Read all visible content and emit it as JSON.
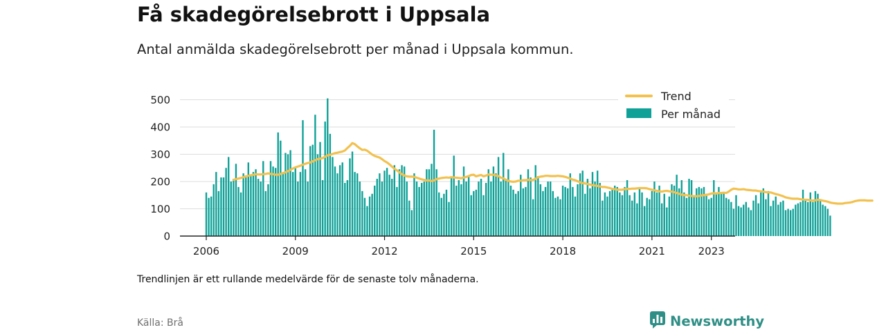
{
  "header": {
    "title": "Få skadegörelsebrott i Uppsala",
    "subtitle": "Antal anmälda skadegörelsebrott per månad i Uppsala kommun."
  },
  "footer": {
    "note": "Trendlinjen är ett rullande medelvärde för de senaste tolv månaderna.",
    "source": "Källa: Brå",
    "brand": "Newsworthy",
    "brand_icon": "chart-bubble-icon"
  },
  "colors": {
    "bars": "#0fa197",
    "trend": "#f2c14e",
    "grid": "#dddddd",
    "axis": "#222222",
    "brand": "#2f8f86"
  },
  "chart_data": {
    "type": "bar",
    "x_ticks": [
      "2006",
      "2009",
      "2012",
      "2015",
      "2018",
      "2021",
      "2023"
    ],
    "y_ticks": [
      0,
      100,
      200,
      300,
      400,
      500
    ],
    "ylim": [
      0,
      520
    ],
    "grid": true,
    "legend_position": "top-right",
    "series": [
      {
        "name": "Per månad",
        "kind": "bar",
        "start": "2006-01",
        "values": [
          160,
          140,
          145,
          190,
          235,
          165,
          215,
          215,
          250,
          290,
          200,
          210,
          265,
          180,
          160,
          230,
          215,
          270,
          220,
          235,
          245,
          210,
          200,
          275,
          165,
          190,
          275,
          255,
          250,
          380,
          350,
          230,
          305,
          300,
          315,
          235,
          250,
          200,
          235,
          425,
          245,
          200,
          330,
          335,
          445,
          300,
          345,
          205,
          420,
          505,
          375,
          290,
          255,
          230,
          260,
          270,
          195,
          205,
          285,
          310,
          235,
          230,
          200,
          165,
          140,
          110,
          145,
          155,
          185,
          210,
          230,
          200,
          240,
          250,
          225,
          210,
          260,
          180,
          245,
          260,
          255,
          200,
          130,
          95,
          230,
          200,
          180,
          195,
          200,
          245,
          245,
          265,
          390,
          245,
          160,
          140,
          155,
          170,
          125,
          215,
          295,
          185,
          205,
          190,
          255,
          200,
          220,
          150,
          165,
          170,
          200,
          210,
          150,
          195,
          245,
          200,
          255,
          230,
          290,
          200,
          305,
          210,
          245,
          185,
          170,
          155,
          165,
          225,
          175,
          180,
          245,
          215,
          135,
          260,
          220,
          190,
          165,
          180,
          200,
          200,
          165,
          140,
          145,
          135,
          185,
          180,
          175,
          230,
          180,
          145,
          190,
          230,
          240,
          155,
          210,
          175,
          235,
          200,
          240,
          195,
          130,
          160,
          145,
          165,
          170,
          185,
          180,
          160,
          150,
          180,
          205,
          150,
          130,
          160,
          120,
          175,
          160,
          110,
          140,
          135,
          165,
          200,
          160,
          185,
          120,
          155,
          105,
          145,
          190,
          185,
          225,
          175,
          205,
          160,
          140,
          210,
          205,
          150,
          175,
          180,
          175,
          180,
          155,
          135,
          140,
          205,
          160,
          180,
          160,
          160,
          140,
          135,
          125,
          100,
          150,
          110,
          105,
          115,
          125,
          105,
          95,
          130,
          150,
          120,
          160,
          175,
          135,
          165,
          110,
          130,
          145,
          115,
          125,
          130,
          95,
          100,
          95,
          100,
          115,
          120,
          125,
          170,
          130,
          125,
          160,
          125,
          165,
          155,
          130,
          115,
          110,
          100,
          75
        ]
      },
      {
        "name": "Trend",
        "kind": "line",
        "start": "2006-12",
        "values": [
          206,
          209,
          211,
          213,
          216,
          219,
          221,
          223,
          225,
          227,
          226,
          226,
          227,
          228,
          230,
          228,
          227,
          225,
          225,
          228,
          231,
          234,
          238,
          243,
          248,
          252,
          255,
          258,
          262,
          265,
          268,
          270,
          274,
          278,
          282,
          284,
          286,
          291,
          296,
          298,
          301,
          304,
          306,
          308,
          310,
          314,
          323,
          331,
          341,
          337,
          329,
          322,
          316,
          317,
          313,
          306,
          299,
          294,
          291,
          288,
          282,
          275,
          270,
          263,
          255,
          247,
          241,
          234,
          227,
          222,
          219,
          218,
          218,
          217,
          214,
          211,
          208,
          206,
          204,
          204,
          202,
          204,
          209,
          211,
          213,
          214,
          215,
          214,
          216,
          215,
          214,
          213,
          212,
          215,
          217,
          220,
          224,
          225,
          219,
          222,
          224,
          219,
          222,
          226,
          225,
          225,
          222,
          220,
          214,
          212,
          206,
          203,
          200,
          199,
          200,
          203,
          203,
          205,
          205,
          206,
          205,
          206,
          210,
          216,
          218,
          219,
          221,
          221,
          220,
          220,
          220,
          221,
          220,
          219,
          217,
          214,
          211,
          207,
          205,
          201,
          197,
          194,
          193,
          191,
          189,
          187,
          185,
          184,
          182,
          180,
          180,
          178,
          176,
          173,
          172,
          170,
          170,
          170,
          172,
          173,
          173,
          174,
          174,
          175,
          176,
          176,
          176,
          175,
          172,
          170,
          168,
          166,
          164,
          163,
          165,
          166,
          164,
          163,
          161,
          158,
          155,
          152,
          150,
          150,
          148,
          147,
          146,
          146,
          147,
          149,
          150,
          151,
          153,
          156,
          157,
          156,
          158,
          158,
          159,
          158,
          163,
          170,
          174,
          173,
          171,
          171,
          172,
          170,
          169,
          168,
          167,
          167,
          165,
          164,
          163,
          161,
          160,
          160,
          157,
          154,
          152,
          149,
          146,
          142,
          140,
          138,
          137,
          137,
          137,
          135,
          134,
          133,
          133,
          131,
          130,
          131,
          133,
          132,
          130,
          128,
          126,
          123,
          121,
          120,
          119,
          119,
          119,
          121,
          122,
          123,
          125,
          128,
          130,
          131,
          131,
          131,
          130,
          130,
          130
        ]
      }
    ]
  }
}
